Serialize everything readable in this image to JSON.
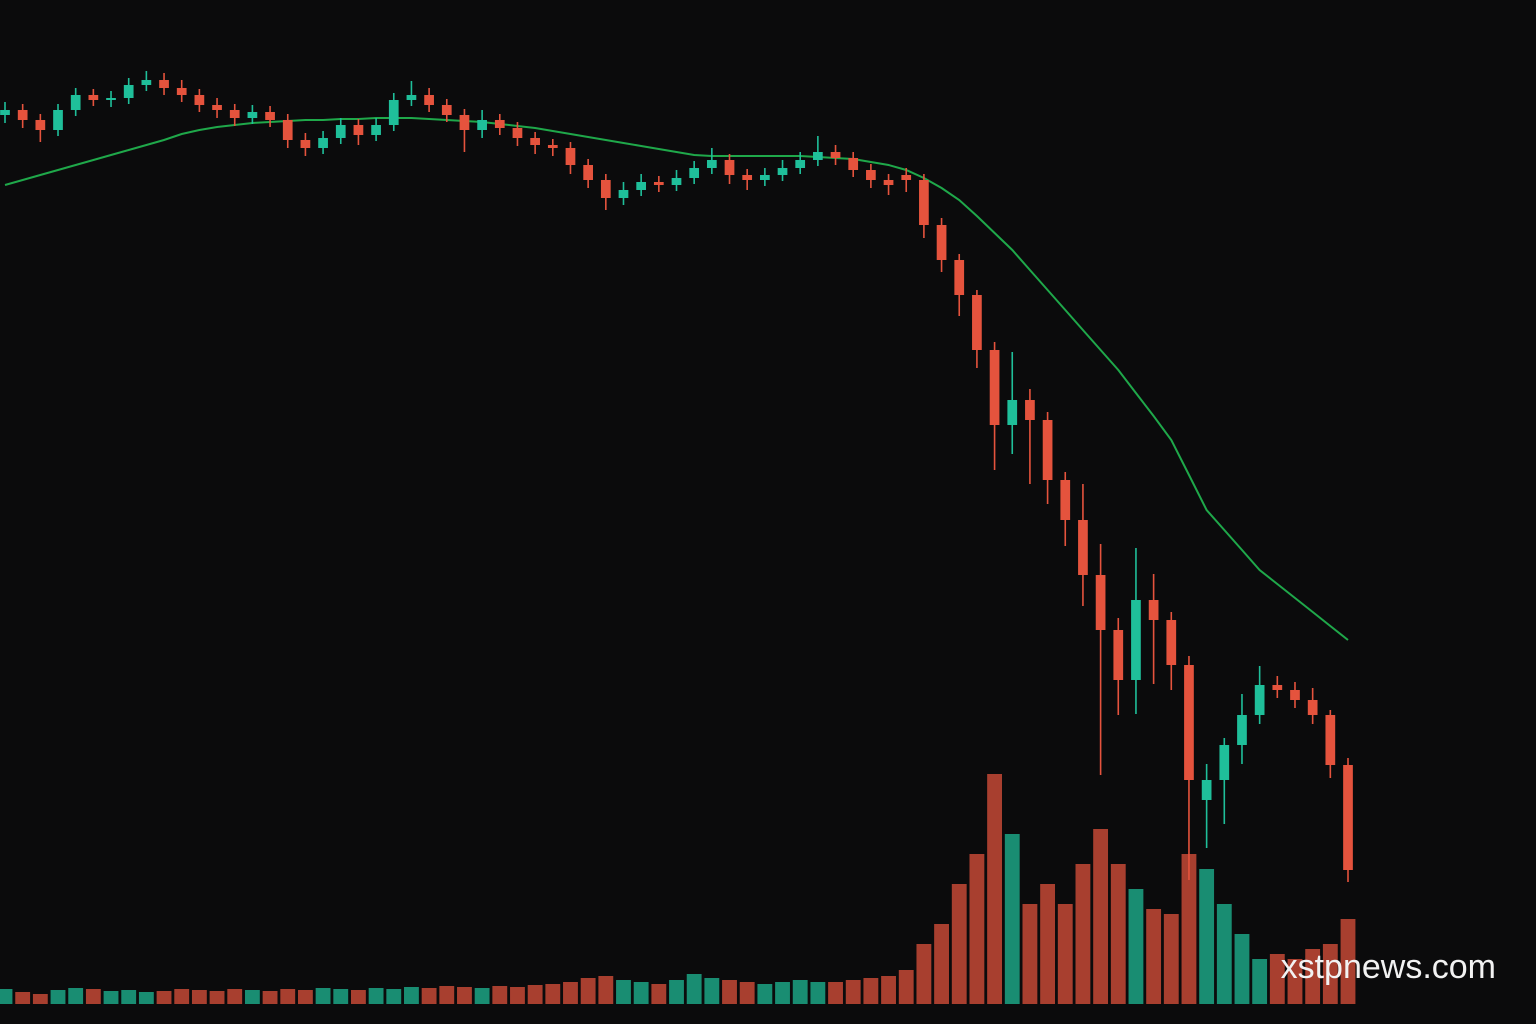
{
  "chart_data": {
    "type": "candlestick",
    "up_color": "#1fbf9a",
    "down_color": "#e5533d",
    "ma_color": "#1fa84a",
    "ylim": [
      0,
      102.4
    ],
    "volume_ylim": [
      0,
      250
    ],
    "open": [
      90.9,
      91.4,
      90.4,
      89.4,
      91.4,
      92.9,
      92.4,
      92.6,
      93.9,
      94.4,
      93.6,
      92.9,
      91.9,
      91.4,
      90.6,
      91.2,
      90.4,
      88.4,
      87.6,
      88.6,
      89.9,
      88.9,
      89.9,
      92.4,
      92.9,
      91.9,
      90.9,
      89.4,
      90.4,
      89.6,
      88.6,
      87.9,
      87.6,
      85.9,
      84.4,
      82.6,
      83.4,
      84.2,
      83.9,
      84.6,
      85.6,
      86.4,
      84.9,
      84.4,
      84.9,
      85.6,
      86.4,
      87.2,
      86.6,
      85.4,
      84.4,
      84.9,
      84.4,
      79.9,
      76.4,
      72.9,
      67.4,
      59.9,
      62.4,
      60.4,
      54.4,
      50.4,
      44.9,
      39.4,
      34.4,
      42.4,
      40.4,
      35.9,
      22.4,
      24.4,
      27.9,
      30.9,
      33.9,
      33.4,
      32.4,
      30.9,
      25.9
    ],
    "high": [
      92.2,
      92.0,
      91.0,
      92.0,
      93.6,
      93.5,
      93.3,
      94.6,
      95.3,
      95.1,
      94.4,
      93.5,
      92.6,
      92.0,
      91.9,
      91.8,
      91.0,
      89.1,
      89.3,
      90.6,
      90.5,
      90.6,
      93.1,
      94.3,
      93.6,
      92.5,
      91.5,
      91.4,
      91.0,
      90.2,
      89.2,
      88.5,
      88.2,
      86.5,
      85.0,
      84.2,
      85.0,
      84.8,
      85.4,
      86.3,
      87.6,
      87.0,
      85.5,
      85.6,
      86.4,
      87.2,
      88.8,
      87.9,
      87.2,
      86.0,
      85.0,
      85.6,
      85.0,
      80.6,
      77.0,
      73.4,
      68.2,
      67.2,
      63.5,
      61.2,
      55.2,
      54.0,
      48.0,
      40.6,
      47.6,
      45.0,
      41.2,
      36.8,
      26.0,
      28.6,
      33.0,
      35.8,
      34.8,
      34.2,
      33.6,
      31.4,
      26.6
    ],
    "low": [
      90.1,
      89.6,
      88.2,
      88.8,
      90.8,
      91.8,
      91.7,
      92.0,
      93.3,
      92.9,
      92.2,
      91.2,
      90.6,
      89.8,
      90.0,
      89.7,
      87.6,
      86.8,
      87.0,
      88.0,
      87.9,
      88.3,
      89.3,
      91.8,
      91.2,
      90.2,
      87.2,
      88.6,
      88.9,
      87.8,
      87.0,
      86.8,
      85.0,
      83.6,
      81.4,
      81.9,
      82.8,
      83.2,
      83.3,
      84.0,
      85.0,
      84.0,
      83.4,
      83.8,
      84.3,
      85.0,
      85.8,
      85.9,
      84.7,
      83.6,
      82.9,
      83.2,
      78.6,
      75.2,
      70.8,
      65.6,
      55.4,
      57.0,
      54.0,
      52.0,
      47.8,
      41.8,
      24.9,
      30.9,
      31.0,
      34.0,
      33.4,
      14.4,
      17.6,
      20.0,
      26.0,
      30.0,
      32.6,
      31.6,
      30.0,
      24.6,
      14.2
    ],
    "close": [
      91.4,
      90.4,
      89.4,
      91.4,
      92.9,
      92.4,
      92.6,
      93.9,
      94.4,
      93.6,
      92.9,
      91.9,
      91.4,
      90.6,
      91.2,
      90.4,
      88.4,
      87.6,
      88.6,
      89.9,
      88.9,
      89.9,
      92.4,
      92.9,
      91.9,
      90.9,
      89.4,
      90.4,
      89.6,
      88.6,
      87.9,
      87.6,
      85.9,
      84.4,
      82.6,
      83.4,
      84.2,
      83.9,
      84.6,
      85.6,
      86.4,
      84.9,
      84.4,
      84.9,
      85.6,
      86.4,
      87.2,
      86.6,
      85.4,
      84.4,
      83.9,
      84.4,
      79.9,
      76.4,
      72.9,
      67.4,
      59.9,
      62.4,
      60.4,
      54.4,
      50.4,
      44.9,
      39.4,
      34.4,
      42.4,
      40.4,
      35.9,
      24.4,
      24.4,
      27.9,
      30.9,
      33.9,
      33.4,
      32.4,
      30.9,
      25.9,
      15.4
    ],
    "volume": [
      15,
      12,
      10,
      14,
      16,
      15,
      13,
      14,
      12,
      13,
      15,
      14,
      13,
      15,
      14,
      13,
      15,
      14,
      16,
      15,
      14,
      16,
      15,
      17,
      16,
      18,
      17,
      16,
      18,
      17,
      19,
      20,
      22,
      26,
      28,
      24,
      22,
      20,
      24,
      30,
      26,
      24,
      22,
      20,
      22,
      24,
      22,
      22,
      24,
      26,
      28,
      34,
      60,
      80,
      120,
      150,
      230,
      170,
      100,
      120,
      100,
      140,
      175,
      140,
      115,
      95,
      90,
      150,
      135,
      100,
      70,
      45,
      50,
      45,
      55,
      60,
      85
    ],
    "ma": [
      83.9,
      84.4,
      84.9,
      85.4,
      85.9,
      86.4,
      86.9,
      87.4,
      87.9,
      88.4,
      89.0,
      89.4,
      89.7,
      89.9,
      90.1,
      90.2,
      90.3,
      90.4,
      90.4,
      90.5,
      90.5,
      90.6,
      90.6,
      90.6,
      90.5,
      90.4,
      90.3,
      90.2,
      90.0,
      89.8,
      89.6,
      89.3,
      89.0,
      88.7,
      88.4,
      88.1,
      87.8,
      87.5,
      87.2,
      86.9,
      86.8,
      86.8,
      86.8,
      86.8,
      86.8,
      86.8,
      86.7,
      86.6,
      86.5,
      86.2,
      85.9,
      85.4,
      84.6,
      83.6,
      82.4,
      80.8,
      79.1,
      77.4,
      75.4,
      73.4,
      71.4,
      69.4,
      67.4,
      65.4,
      63.1,
      60.8,
      58.4,
      54.9,
      51.4,
      49.4,
      47.4,
      45.4,
      44.0,
      42.6,
      41.2,
      39.8,
      38.4
    ],
    "watermark": "xstpnews.com"
  }
}
